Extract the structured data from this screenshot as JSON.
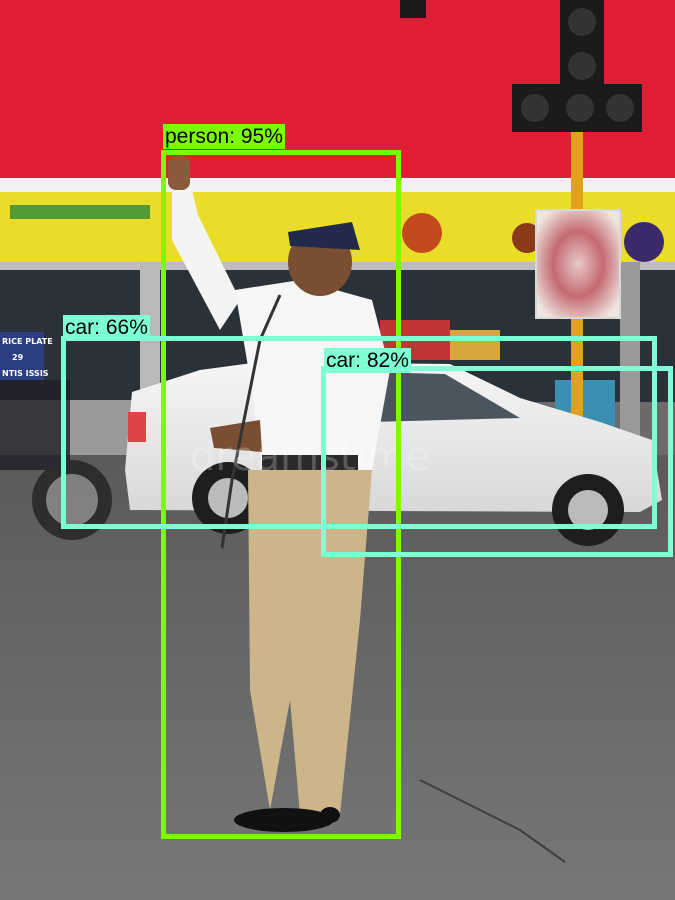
{
  "photo": {
    "storefront_sign_text": [
      "RICE PLATE",
      "29",
      "NTIS ISSIS"
    ],
    "watermark_text": "dreamstime"
  },
  "detections": [
    {
      "label": "person",
      "score": "95%",
      "text": "person: 95%",
      "color": "#7CFC00"
    },
    {
      "label": "car",
      "score": "66%",
      "text": "car: 66%",
      "color": "#7FFFD4"
    },
    {
      "label": "car",
      "score": "82%",
      "text": "car: 82%",
      "color": "#7FFFD4"
    }
  ]
}
